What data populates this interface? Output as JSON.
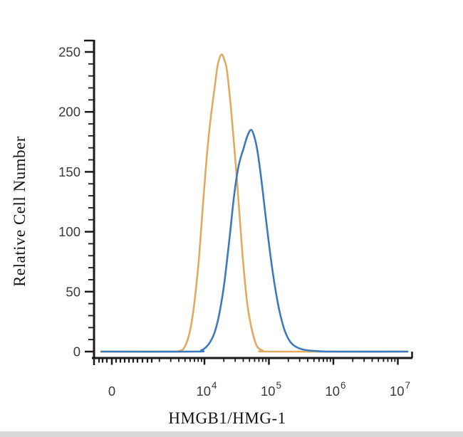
{
  "chart_data": {
    "type": "line",
    "subtype": "flow_cytometry_histogram_overlay",
    "title": "",
    "xlabel": "HMGB1/HMG-1",
    "ylabel": "Relative Cell Number",
    "x_scale": "biexponential_log",
    "grid": false,
    "legend": "none",
    "ylim": [
      0,
      260
    ],
    "y_ticks": [
      0,
      50,
      100,
      150,
      200,
      250
    ],
    "x_ticks": [
      {
        "label": "0",
        "kind": "zero"
      },
      {
        "base": "10",
        "exp": "4",
        "log": 4
      },
      {
        "base": "10",
        "exp": "5",
        "log": 5
      },
      {
        "base": "10",
        "exp": "6",
        "log": 6
      },
      {
        "base": "10",
        "exp": "7",
        "log": 7
      }
    ],
    "axis_color": "#1b1b1b",
    "tick_label_color": "#3a3a3a",
    "series": [
      {
        "name": "orange-histogram",
        "color": "#e0ab60",
        "peak": {
          "x_approx": "1.8e4",
          "y": 248
        },
        "points_log10x_count": [
          [
            2.4,
            0
          ],
          [
            3.5,
            0
          ],
          [
            3.6,
            0.5
          ],
          [
            3.67,
            2
          ],
          [
            3.74,
            10
          ],
          [
            3.8,
            24
          ],
          [
            3.86,
            48
          ],
          [
            3.92,
            81
          ],
          [
            3.98,
            125
          ],
          [
            4.04,
            165
          ],
          [
            4.1,
            196
          ],
          [
            4.16,
            221
          ],
          [
            4.21,
            240
          ],
          [
            4.265,
            248
          ],
          [
            4.31,
            243
          ],
          [
            4.35,
            234
          ],
          [
            4.42,
            198
          ],
          [
            4.51,
            139
          ],
          [
            4.59,
            81
          ],
          [
            4.66,
            42
          ],
          [
            4.72,
            22
          ],
          [
            4.77,
            11
          ],
          [
            4.82,
            4
          ],
          [
            4.9,
            1
          ],
          [
            5.05,
            0
          ],
          [
            7.15,
            0
          ]
        ]
      },
      {
        "name": "blue-histogram",
        "color": "#3d7abc",
        "peak": {
          "x_approx": "5e4",
          "y": 185
        },
        "points_log10x_count": [
          [
            2.4,
            0
          ],
          [
            3.85,
            0
          ],
          [
            3.95,
            1
          ],
          [
            4.03,
            4
          ],
          [
            4.1,
            9
          ],
          [
            4.17,
            18
          ],
          [
            4.24,
            34
          ],
          [
            4.31,
            58
          ],
          [
            4.39,
            95
          ],
          [
            4.46,
            130
          ],
          [
            4.53,
            155
          ],
          [
            4.61,
            170
          ],
          [
            4.66,
            179
          ],
          [
            4.72,
            185
          ],
          [
            4.77,
            180
          ],
          [
            4.82,
            168
          ],
          [
            4.88,
            145
          ],
          [
            4.96,
            108
          ],
          [
            5.05,
            70
          ],
          [
            5.14,
            40
          ],
          [
            5.23,
            20
          ],
          [
            5.32,
            9
          ],
          [
            5.42,
            4
          ],
          [
            5.55,
            1.5
          ],
          [
            5.75,
            0.4
          ],
          [
            6.0,
            0
          ],
          [
            7.15,
            0
          ]
        ]
      }
    ]
  }
}
